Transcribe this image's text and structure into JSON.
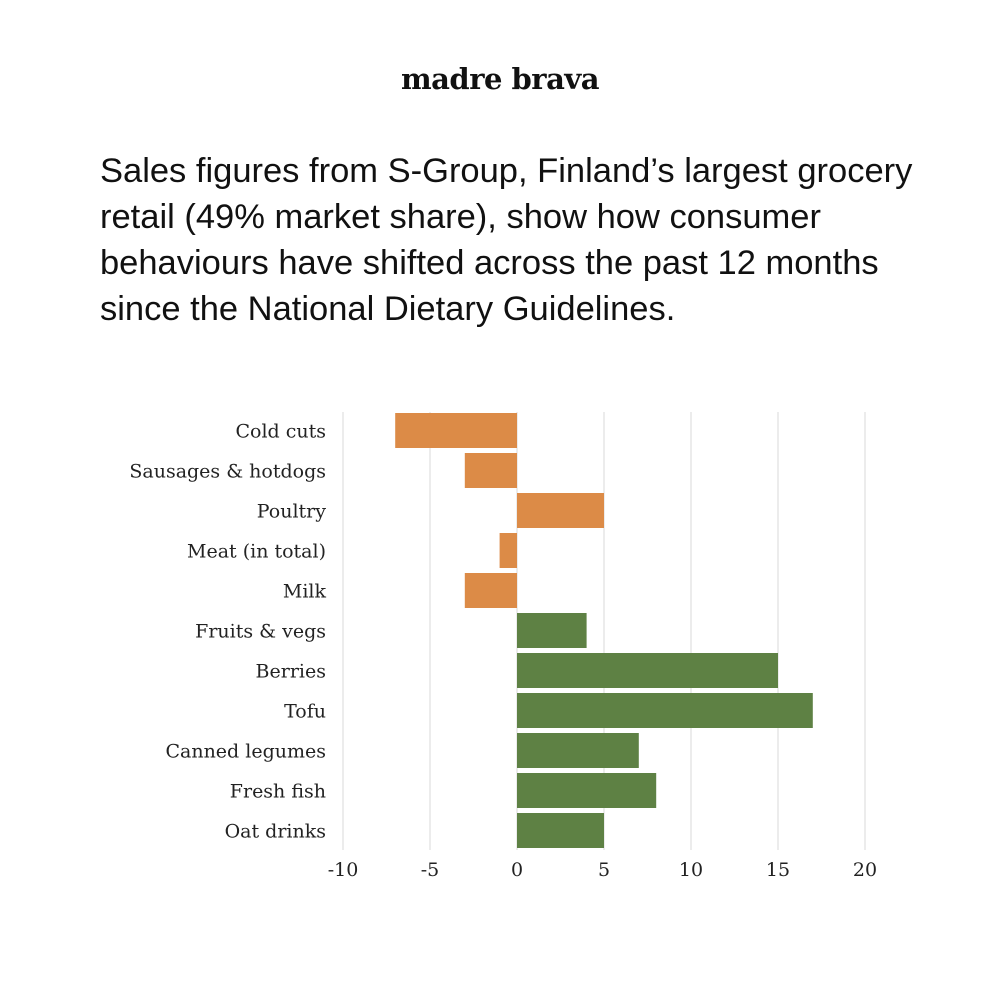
{
  "brand": "madre brava",
  "headline": "Sales figures from S-Group, Finland’s largest grocery retail (49% market share), show how consumer behaviours have shifted across the past 12 months since the National Dietary Guidelines.",
  "chart_data": {
    "type": "bar",
    "orientation": "horizontal",
    "title": "",
    "xlabel": "",
    "ylabel": "",
    "xlim": [
      -10,
      20
    ],
    "x_ticks": [
      -10,
      -5,
      0,
      5,
      10,
      15,
      20
    ],
    "grid": true,
    "categories": [
      "Cold cuts",
      "Sausages & hotdogs",
      "Poultry",
      "Meat (in total)",
      "Milk",
      "Fruits & vegs",
      "Berries",
      "Tofu",
      "Canned legumes",
      "Fresh fish",
      "Oat drinks"
    ],
    "values": [
      -7,
      -3,
      5,
      -1,
      -3,
      4,
      15,
      17,
      7,
      8,
      5
    ],
    "colors": [
      "#dc8b47",
      "#dc8b47",
      "#dc8b47",
      "#dc8b47",
      "#dc8b47",
      "#5e8144",
      "#5e8144",
      "#5e8144",
      "#5e8144",
      "#5e8144",
      "#5e8144"
    ],
    "grid_color": "#d9d9d9",
    "label_color": "#222222"
  }
}
